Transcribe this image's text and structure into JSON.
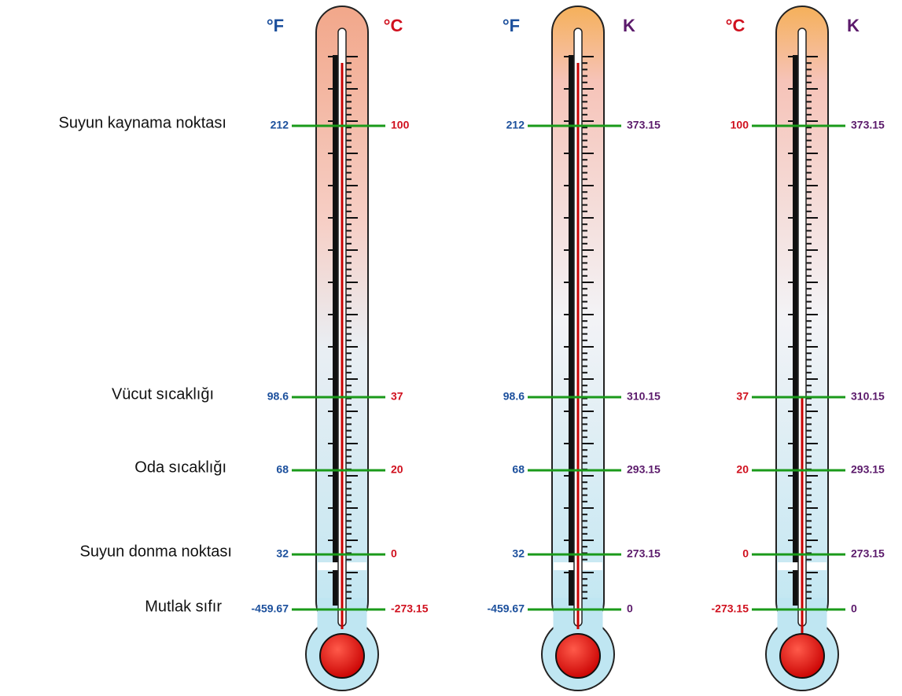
{
  "labels": [
    "Suyun kaynama noktası",
    "Vücut sıcaklığı",
    "Oda sıcaklığı",
    "Suyun donma noktası",
    "Mutlak sıfır"
  ],
  "thermometers": [
    {
      "left_unit": "°F",
      "right_unit": "°C",
      "left": [
        "212",
        "98.6",
        "68",
        "32",
        "-459.67"
      ],
      "right": [
        "100",
        "37",
        "20",
        "0",
        "-273.15"
      ]
    },
    {
      "left_unit": "°F",
      "right_unit": "K",
      "left": [
        "212",
        "98.6",
        "68",
        "32",
        "-459.67"
      ],
      "right": [
        "373.15",
        "310.15",
        "293.15",
        "273.15",
        "0"
      ]
    },
    {
      "left_unit": "°C",
      "right_unit": "K",
      "left": [
        "100",
        "37",
        "20",
        "0",
        "-273.15"
      ],
      "right": [
        "373.15",
        "310.15",
        "293.15",
        "273.15",
        "0"
      ]
    }
  ]
}
